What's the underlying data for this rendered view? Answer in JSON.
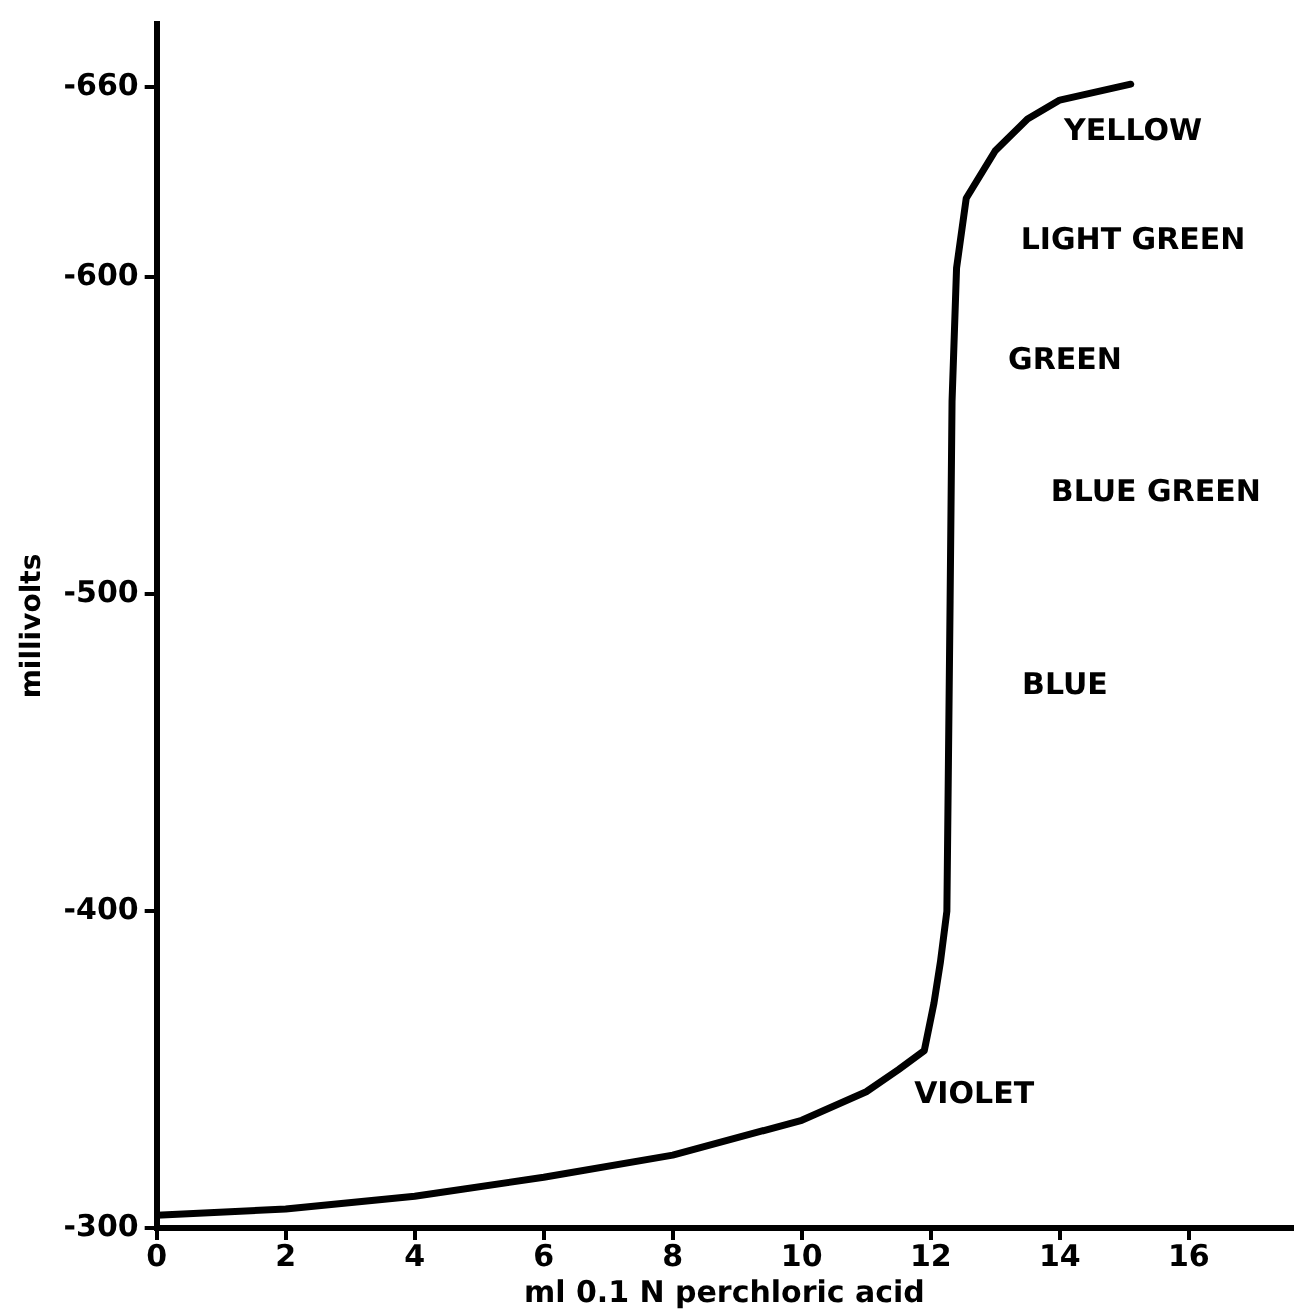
{
  "chart_data": {
    "type": "line",
    "xlabel": "ml 0.1 N perchloric acid",
    "ylabel": "millivolts",
    "xlim": [
      0,
      17.6
    ],
    "xticks": [
      0,
      2,
      4,
      6,
      8,
      10,
      12,
      14,
      16
    ],
    "ylim": [
      -300,
      -680
    ],
    "yticks": [
      -300,
      -400,
      -500,
      -600,
      -660
    ],
    "grid": false,
    "legend": false,
    "marker": "none",
    "line_style": "solid",
    "series": [
      {
        "color": "#000000",
        "x": [
          0,
          2,
          4,
          6,
          8,
          10,
          11,
          11.5,
          11.9,
          12.05,
          12.15,
          12.25,
          12.3,
          12.33,
          12.4,
          12.55,
          13,
          13.5,
          14,
          15.1
        ],
        "values": [
          -304,
          -306,
          -310,
          -316,
          -323,
          -334,
          -343,
          -350,
          -356,
          -371,
          -384,
          -400,
          -498,
          -561,
          -603,
          -625,
          -640,
          -650,
          -656,
          -661
        ]
      }
    ],
    "annotations": [
      "YELLOW",
      "LIGHT GREEN",
      "GREEN",
      "BLUE GREEN",
      "BLUE",
      "VIOLET"
    ]
  }
}
